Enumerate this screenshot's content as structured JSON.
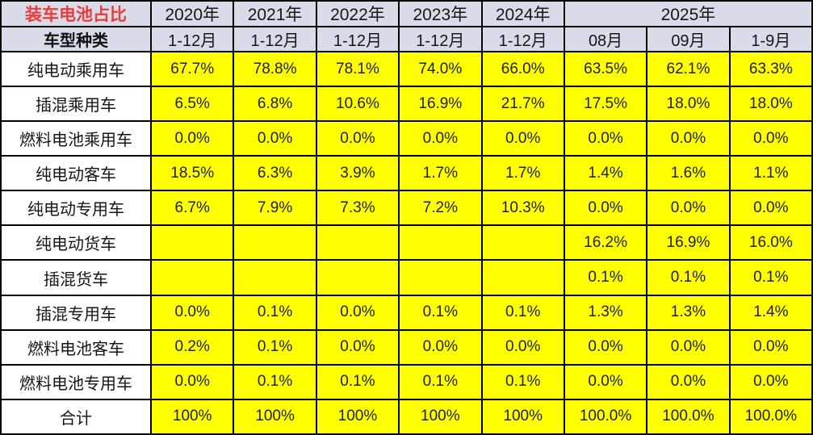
{
  "table": {
    "title": "装车电池占比",
    "row_header_label": "车型种类",
    "year_headers": [
      {
        "label": "2020年",
        "colspan": 1
      },
      {
        "label": "2021年",
        "colspan": 1
      },
      {
        "label": "2022年",
        "colspan": 1
      },
      {
        "label": "2023年",
        "colspan": 1
      },
      {
        "label": "2024年",
        "colspan": 1
      },
      {
        "label": "2025年",
        "colspan": 3
      }
    ],
    "period_headers": [
      "1-12月",
      "1-12月",
      "1-12月",
      "1-12月",
      "1-12月",
      "08月",
      "09月",
      "1-9月"
    ],
    "rows": [
      {
        "label": "纯电动乘用车",
        "values": [
          "67.7%",
          "78.8%",
          "78.1%",
          "74.0%",
          "66.0%",
          "63.5%",
          "62.1%",
          "63.3%"
        ]
      },
      {
        "label": "插混乘用车",
        "values": [
          "6.5%",
          "6.8%",
          "10.6%",
          "16.9%",
          "21.7%",
          "17.5%",
          "18.0%",
          "18.0%"
        ]
      },
      {
        "label": "燃料电池乘用车",
        "values": [
          "0.0%",
          "0.0%",
          "0.0%",
          "0.0%",
          "0.0%",
          "0.0%",
          "0.0%",
          "0.0%"
        ]
      },
      {
        "label": "纯电动客车",
        "values": [
          "18.5%",
          "6.3%",
          "3.9%",
          "1.7%",
          "1.7%",
          "1.4%",
          "1.6%",
          "1.1%"
        ]
      },
      {
        "label": "纯电动专用车",
        "values": [
          "6.7%",
          "7.9%",
          "7.3%",
          "7.2%",
          "10.3%",
          "0.0%",
          "0.0%",
          "0.0%"
        ]
      },
      {
        "label": "纯电动货车",
        "values": [
          "",
          "",
          "",
          "",
          "",
          "16.2%",
          "16.9%",
          "16.0%"
        ]
      },
      {
        "label": "插混货车",
        "values": [
          "",
          "",
          "",
          "",
          "",
          "0.1%",
          "0.1%",
          "0.1%"
        ]
      },
      {
        "label": "插混专用车",
        "values": [
          "0.0%",
          "0.1%",
          "0.0%",
          "0.1%",
          "0.1%",
          "1.3%",
          "1.3%",
          "1.4%"
        ]
      },
      {
        "label": "燃料电池客车",
        "values": [
          "0.2%",
          "0.1%",
          "0.0%",
          "0.0%",
          "0.0%",
          "0.0%",
          "0.0%",
          "0.0%"
        ]
      },
      {
        "label": "燃料电池专用车",
        "values": [
          "0.0%",
          "0.1%",
          "0.1%",
          "0.1%",
          "0.1%",
          "0.0%",
          "0.0%",
          "0.0%"
        ]
      }
    ],
    "total_row": {
      "label": "合计",
      "values": [
        "100%",
        "100%",
        "100%",
        "100%",
        "100%",
        "100.0%",
        "100.0%",
        "100.0%"
      ]
    },
    "colors": {
      "header_bg": "#d8dce8",
      "value_bg": "#ffff00",
      "label_bg": "#ffffff",
      "border": "#000000",
      "title_text": "#ea3b3b"
    }
  },
  "chart_data": {
    "type": "table",
    "title": "装车电池占比",
    "columns": [
      "车型种类",
      "2020年 1-12月",
      "2021年 1-12月",
      "2022年 1-12月",
      "2023年 1-12月",
      "2024年 1-12月",
      "2025年 08月",
      "2025年 09月",
      "2025年 1-9月"
    ],
    "rows": [
      [
        "纯电动乘用车",
        "67.7%",
        "78.8%",
        "78.1%",
        "74.0%",
        "66.0%",
        "63.5%",
        "62.1%",
        "63.3%"
      ],
      [
        "插混乘用车",
        "6.5%",
        "6.8%",
        "10.6%",
        "16.9%",
        "21.7%",
        "17.5%",
        "18.0%",
        "18.0%"
      ],
      [
        "燃料电池乘用车",
        "0.0%",
        "0.0%",
        "0.0%",
        "0.0%",
        "0.0%",
        "0.0%",
        "0.0%",
        "0.0%"
      ],
      [
        "纯电动客车",
        "18.5%",
        "6.3%",
        "3.9%",
        "1.7%",
        "1.7%",
        "1.4%",
        "1.6%",
        "1.1%"
      ],
      [
        "纯电动专用车",
        "6.7%",
        "7.9%",
        "7.3%",
        "7.2%",
        "10.3%",
        "0.0%",
        "0.0%",
        "0.0%"
      ],
      [
        "纯电动货车",
        "",
        "",
        "",
        "",
        "",
        "16.2%",
        "16.9%",
        "16.0%"
      ],
      [
        "插混货车",
        "",
        "",
        "",
        "",
        "",
        "0.1%",
        "0.1%",
        "0.1%"
      ],
      [
        "插混专用车",
        "0.0%",
        "0.1%",
        "0.0%",
        "0.1%",
        "0.1%",
        "1.3%",
        "1.3%",
        "1.4%"
      ],
      [
        "燃料电池客车",
        "0.2%",
        "0.1%",
        "0.0%",
        "0.0%",
        "0.0%",
        "0.0%",
        "0.0%",
        "0.0%"
      ],
      [
        "燃料电池专用车",
        "0.0%",
        "0.1%",
        "0.1%",
        "0.1%",
        "0.1%",
        "0.0%",
        "0.0%",
        "0.0%"
      ],
      [
        "合计",
        "100%",
        "100%",
        "100%",
        "100%",
        "100%",
        "100.0%",
        "100.0%",
        "100.0%"
      ]
    ]
  }
}
